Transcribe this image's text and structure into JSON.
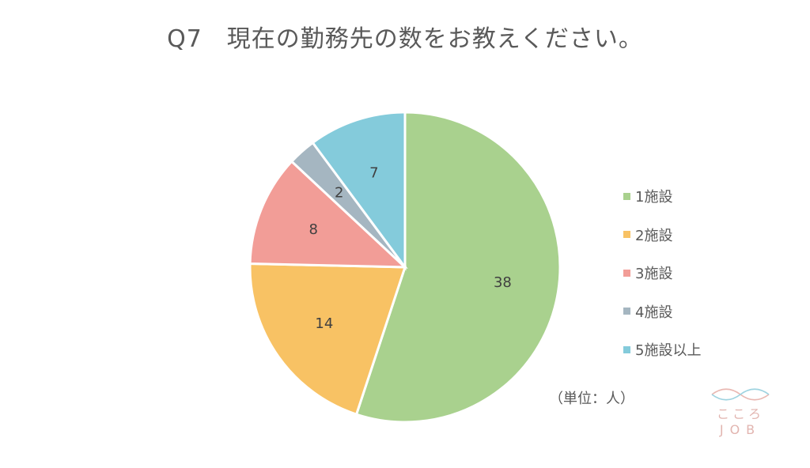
{
  "chart_data": {
    "type": "pie",
    "title": "Q7　現在の勤務先の数をお教えください。",
    "slices": [
      {
        "label": "1施設",
        "value": 38,
        "color": "#a9d18e"
      },
      {
        "label": "2施設",
        "value": 14,
        "color": "#f8c264"
      },
      {
        "label": "3施設",
        "value": 8,
        "color": "#f29d97"
      },
      {
        "label": "4施設",
        "value": 2,
        "color": "#a5b6c1"
      },
      {
        "label": "5施設以上",
        "value": 7,
        "color": "#84cbdb"
      }
    ],
    "start_angle_deg": 0,
    "direction": "clockwise",
    "legend_position": "right",
    "unit_note": "（単位：人）"
  },
  "logo": {
    "line1": "こころ",
    "line2": "JOB"
  }
}
